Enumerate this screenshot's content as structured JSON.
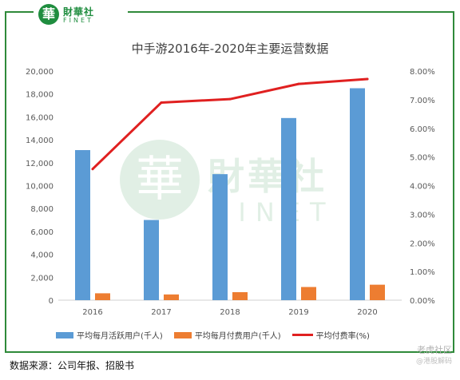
{
  "logo": {
    "mark": "華",
    "cn": "財華社",
    "en": "FINET"
  },
  "watermark": {
    "mark": "華",
    "cn": "財華社",
    "en": "FINET"
  },
  "chart_data": {
    "type": "bar",
    "title": "中手游2016年-2020年主要运营数据",
    "categories": [
      "2016",
      "2017",
      "2018",
      "2019",
      "2020"
    ],
    "series": [
      {
        "name": "平均每月活跃用户(千人)",
        "type": "bar",
        "axis": "left",
        "color": "#5b9bd5",
        "values": [
          13100,
          7000,
          11000,
          15900,
          18500
        ]
      },
      {
        "name": "平均每月付费用户(千人)",
        "type": "bar",
        "axis": "left",
        "color": "#ed7d31",
        "values": [
          600,
          500,
          700,
          1150,
          1350
        ]
      },
      {
        "name": "平均付费率(%)",
        "type": "line",
        "axis": "right",
        "color": "#e02020",
        "values": [
          4.58,
          6.9,
          7.02,
          7.55,
          7.72
        ]
      }
    ],
    "ylim": [
      0,
      20000
    ],
    "y_ticks": [
      "0",
      "2,000",
      "4,000",
      "6,000",
      "8,000",
      "10,000",
      "12,000",
      "14,000",
      "16,000",
      "18,000",
      "20,000"
    ],
    "y2lim": [
      0,
      8
    ],
    "y2_ticks": [
      "0.00%",
      "1.00%",
      "2.00%",
      "3.00%",
      "4.00%",
      "5.00%",
      "6.00%",
      "7.00%",
      "8.00%"
    ],
    "grid": false,
    "legend_position": "bottom"
  },
  "source": "数据来源：公司年报、招股书",
  "brand": {
    "line1": "老虎社区",
    "line2": "@港股解码"
  }
}
